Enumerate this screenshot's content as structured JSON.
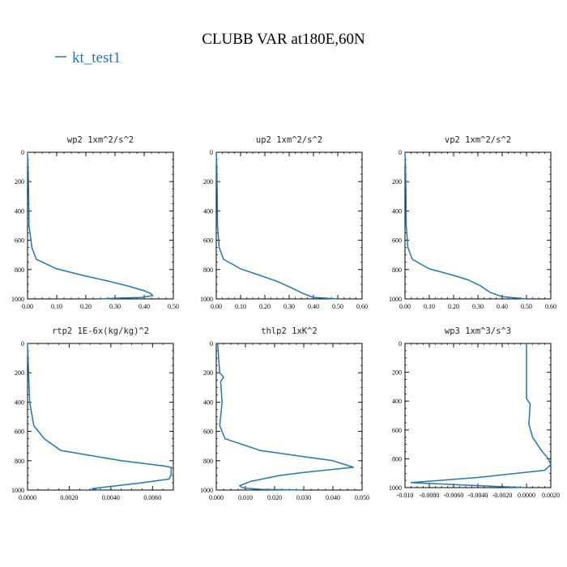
{
  "figure": {
    "title": "CLUBB VAR at180E,60N",
    "legend": {
      "label": "kt_test1",
      "color": "#1f77b4",
      "placement": "top-left"
    }
  },
  "chart_data": [
    {
      "type": "line",
      "id": "wp2",
      "title": "wp2  1xm^2/s^2",
      "xlim": [
        0,
        0.5
      ],
      "ylim": [
        1000,
        0
      ],
      "xticks": [
        0,
        0.1,
        0.2,
        0.3,
        0.4,
        0.5
      ],
      "xticklabels": [
        "0.00",
        "0.10",
        "0.20",
        "0.30",
        "0.40",
        "0.50"
      ],
      "yticks": [
        0,
        200,
        400,
        600,
        800,
        1000
      ],
      "yticklabels": [
        "0",
        "200",
        "400",
        "600",
        "800",
        "1000"
      ],
      "series": [
        {
          "name": "kt_test1",
          "x": [
            0.0,
            0.002,
            0.004,
            0.005,
            0.015,
            0.03,
            0.1,
            0.2,
            0.28,
            0.35,
            0.4,
            0.42,
            0.43,
            0.39,
            0.3,
            0.25
          ],
          "y": [
            0,
            100,
            300,
            500,
            650,
            730,
            795,
            845,
            880,
            915,
            945,
            960,
            978,
            990,
            995,
            1000
          ]
        }
      ]
    },
    {
      "type": "line",
      "id": "up2",
      "title": "up2  1xm^2/s^2",
      "xlim": [
        0,
        0.6
      ],
      "ylim": [
        1000,
        0
      ],
      "xticks": [
        0,
        0.1,
        0.2,
        0.3,
        0.4,
        0.5,
        0.6
      ],
      "xticklabels": [
        "0.00",
        "0.10",
        "0.20",
        "0.30",
        "0.40",
        "0.50",
        "0.60"
      ],
      "yticks": [
        0,
        200,
        400,
        600,
        800,
        1000
      ],
      "yticklabels": [
        "0",
        "200",
        "400",
        "600",
        "800",
        "1000"
      ],
      "series": [
        {
          "name": "kt_test1",
          "x": [
            0.0,
            0.002,
            0.004,
            0.005,
            0.012,
            0.03,
            0.1,
            0.18,
            0.25,
            0.31,
            0.36,
            0.4,
            0.5
          ],
          "y": [
            0,
            100,
            300,
            500,
            650,
            730,
            795,
            840,
            880,
            925,
            965,
            990,
            1000
          ]
        }
      ]
    },
    {
      "type": "line",
      "id": "vp2",
      "title": "vp2  1xm^2/s^2",
      "xlim": [
        0,
        0.6
      ],
      "ylim": [
        1000,
        0
      ],
      "xticks": [
        0,
        0.1,
        0.2,
        0.3,
        0.4,
        0.5,
        0.6
      ],
      "xticklabels": [
        "0.00",
        "0.10",
        "0.20",
        "0.30",
        "0.40",
        "0.50",
        "0.60"
      ],
      "yticks": [
        0,
        200,
        400,
        600,
        800,
        1000
      ],
      "yticklabels": [
        "0",
        "200",
        "400",
        "600",
        "800",
        "1000"
      ],
      "series": [
        {
          "name": "kt_test1",
          "x": [
            0.0,
            0.002,
            0.004,
            0.005,
            0.012,
            0.03,
            0.1,
            0.19,
            0.26,
            0.31,
            0.35,
            0.4,
            0.5
          ],
          "y": [
            0,
            100,
            300,
            500,
            650,
            730,
            795,
            835,
            870,
            910,
            955,
            985,
            1000
          ]
        }
      ]
    },
    {
      "type": "line",
      "id": "rtp2",
      "title": "rtp2  1E-6x(kg/kg)^2",
      "xlim": [
        0,
        0.007
      ],
      "ylim": [
        1000,
        0
      ],
      "xticks": [
        0,
        0.002,
        0.004,
        0.006
      ],
      "xticklabels": [
        "0.0000",
        "0.0020",
        "0.0040",
        "0.0060"
      ],
      "yticks": [
        0,
        200,
        400,
        600,
        800,
        1000
      ],
      "yticklabels": [
        "0",
        "200",
        "400",
        "600",
        "800",
        "1000"
      ],
      "series": [
        {
          "name": "kt_test1",
          "x": [
            0.0,
            5e-05,
            0.0001,
            0.0003,
            0.0008,
            0.0016,
            0.0045,
            0.0065,
            0.0069,
            0.0069,
            0.0068,
            0.0055,
            0.004,
            0.0031,
            0.0034
          ],
          "y": [
            0,
            200,
            400,
            560,
            650,
            730,
            800,
            835,
            845,
            890,
            925,
            950,
            975,
            990,
            1000
          ]
        }
      ]
    },
    {
      "type": "line",
      "id": "thlp2",
      "title": "thlp2  1xK^2",
      "xlim": [
        0,
        0.05
      ],
      "ylim": [
        1000,
        0
      ],
      "xticks": [
        0,
        0.01,
        0.02,
        0.03,
        0.04,
        0.05
      ],
      "xticklabels": [
        "0.000",
        "0.010",
        "0.020",
        "0.030",
        "0.040",
        "0.050"
      ],
      "yticks": [
        0,
        200,
        400,
        600,
        800,
        1000
      ],
      "yticklabels": [
        "0",
        "200",
        "400",
        "600",
        "800",
        "1000"
      ],
      "series": [
        {
          "name": "kt_test1",
          "x": [
            0.0005,
            0.0008,
            0.0012,
            0.0025,
            0.0015,
            0.002,
            0.0012,
            0.003,
            0.015,
            0.04,
            0.047,
            0.03,
            0.022,
            0.012,
            0.008,
            0.009,
            0.015,
            0.03
          ],
          "y": [
            0,
            100,
            200,
            230,
            260,
            400,
            560,
            650,
            730,
            800,
            845,
            880,
            900,
            940,
            970,
            985,
            995,
            1000
          ]
        }
      ]
    },
    {
      "type": "line",
      "id": "wp3",
      "title": "wp3  1xm^3/s^3",
      "xlim": [
        -0.01,
        0.002
      ],
      "ylim": [
        1000,
        0
      ],
      "xticks": [
        -0.01,
        -0.008,
        -0.006,
        -0.004,
        -0.002,
        0,
        0.002
      ],
      "xticklabels": [
        "-0.010",
        "-0.0080",
        "-0.0060",
        "-0.0040",
        "-0.0020",
        "0.0000",
        "0.0020"
      ],
      "yticks": [
        0,
        200,
        400,
        600,
        800,
        1000
      ],
      "yticklabels": [
        "0",
        "200",
        "400",
        "600",
        "800",
        "1000"
      ],
      "series": [
        {
          "name": "kt_test1",
          "x": [
            0.0,
            0.0,
            0.0,
            0.0003,
            0.0002,
            0.0005,
            0.0012,
            0.0018,
            0.002,
            0.0015,
            -0.004,
            -0.0095,
            -0.0045,
            0.0
          ],
          "y": [
            0,
            200,
            380,
            420,
            560,
            650,
            740,
            800,
            840,
            880,
            930,
            965,
            985,
            1000
          ]
        }
      ]
    }
  ]
}
